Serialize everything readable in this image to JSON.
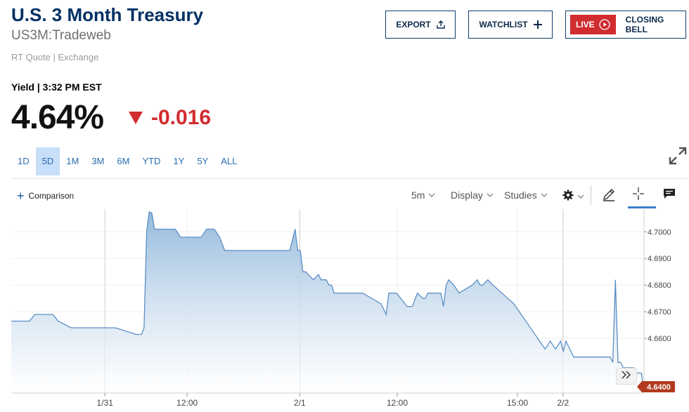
{
  "header": {
    "title": "U.S. 3 Month Treasury",
    "symbol": "US3M:Tradeweb",
    "quote_source": "RT Quote | Exchange",
    "export_label": "EXPORT",
    "watchlist_label": "WATCHLIST",
    "live_label": "LIVE",
    "closing_bell_label": "CLOSING BELL"
  },
  "quote": {
    "label": "Yield | 3:32 PM EST",
    "price": "4.64%",
    "change": "-0.016"
  },
  "ranges": [
    "1D",
    "5D",
    "1M",
    "3M",
    "6M",
    "YTD",
    "1Y",
    "5Y",
    "ALL"
  ],
  "active_range": "5D",
  "toolbar": {
    "comparison_label": "Comparison",
    "interval_label": "5m",
    "display_label": "Display",
    "studies_label": "Studies"
  },
  "colors": {
    "title": "#003063",
    "negative": "#d12c2f",
    "accent": "#2a6db0",
    "line": "#5b8fc4",
    "price_tag": "#b23a1e"
  },
  "chart_data": {
    "type": "area",
    "x_ticks": [
      "1/31",
      "12:00",
      "2/1",
      "12:00",
      "15:00",
      "2/2"
    ],
    "y_ticks": [
      "4.7000",
      "4.6900",
      "4.6800",
      "4.6700",
      "4.6600"
    ],
    "last_price_label": "4.6400",
    "ylim": [
      4.6395,
      4.7085
    ],
    "x": [
      0,
      7,
      9,
      16,
      18,
      23,
      40,
      48,
      50,
      51,
      52,
      53,
      54,
      55,
      57,
      63,
      65,
      70,
      73,
      75,
      78,
      80,
      82,
      87,
      107,
      109,
      110,
      111,
      112,
      113,
      116,
      118,
      119,
      121,
      122,
      123,
      124,
      126,
      127,
      128,
      130,
      135,
      142,
      144,
      145,
      146,
      148,
      152,
      154,
      156,
      158,
      159,
      160,
      165,
      166,
      167,
      168,
      170,
      172,
      177,
      179,
      180,
      181,
      183,
      185,
      193,
      205,
      207,
      209,
      211,
      212,
      213,
      214,
      216,
      219,
      223,
      230,
      231,
      232,
      233,
      234,
      235,
      236,
      237,
      239,
      240,
      241,
      242,
      243
    ],
    "y": [
      4.6665,
      4.6665,
      4.669,
      4.669,
      4.6665,
      4.664,
      4.664,
      4.6615,
      4.6615,
      4.664,
      4.7,
      4.7075,
      4.707,
      4.701,
      4.701,
      4.701,
      4.698,
      4.698,
      4.698,
      4.701,
      4.701,
      4.698,
      4.693,
      4.693,
      4.693,
      4.701,
      4.693,
      4.693,
      4.685,
      4.685,
      4.682,
      4.684,
      4.682,
      4.682,
      4.68,
      4.68,
      4.677,
      4.677,
      4.677,
      4.677,
      4.677,
      4.677,
      4.673,
      4.669,
      4.677,
      4.677,
      4.677,
      4.672,
      4.672,
      4.677,
      4.675,
      4.675,
      4.677,
      4.677,
      4.672,
      4.68,
      4.682,
      4.68,
      4.677,
      4.68,
      4.682,
      4.68,
      4.68,
      4.682,
      4.68,
      4.673,
      4.656,
      4.659,
      4.656,
      4.659,
      4.655,
      4.659,
      4.657,
      4.653,
      4.653,
      4.653,
      4.653,
      4.651,
      4.682,
      4.651,
      4.651,
      4.649,
      4.649,
      4.649,
      4.649,
      4.647,
      4.647,
      4.647,
      4.64
    ]
  }
}
